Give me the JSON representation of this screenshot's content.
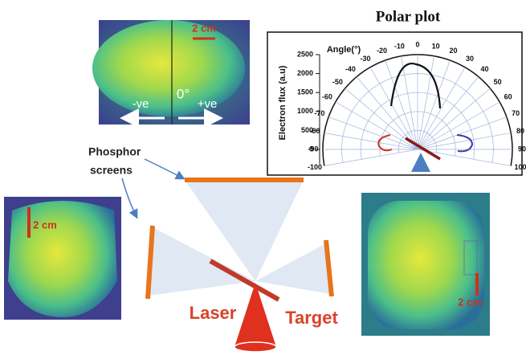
{
  "polar_plot": {
    "title": "Polar plot",
    "angle_label": "Angle(°)",
    "radial_label": "Electron flux (a.u)",
    "radial_ticks": [
      0,
      500,
      1000,
      1500,
      2000,
      2500
    ],
    "angle_ticks": [
      -100,
      -90,
      -80,
      -70,
      -60,
      -50,
      -40,
      -30,
      -20,
      -10,
      0,
      10,
      20,
      30,
      40,
      50,
      60,
      70,
      80,
      90,
      100
    ]
  },
  "top_image": {
    "scale": "2 cm",
    "center": "0°",
    "left": "-ve",
    "right": "+ve"
  },
  "left_image": {
    "scale": "2 cm"
  },
  "right_image": {
    "scale": "2 cm"
  },
  "labels": {
    "screens": [
      "Phosphor",
      "screens"
    ],
    "laser": "Laser",
    "target": "Target"
  }
}
